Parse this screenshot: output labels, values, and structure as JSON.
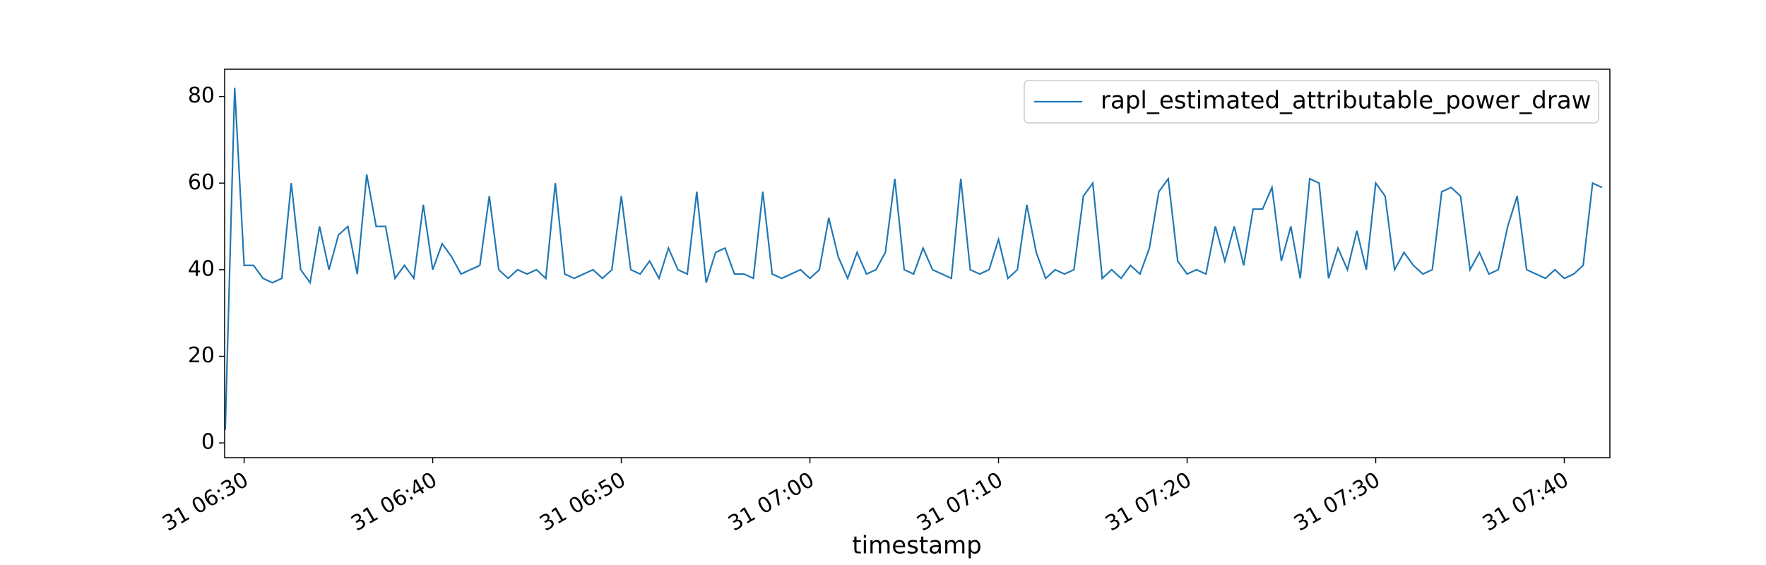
{
  "chart_data": {
    "type": "line",
    "xlabel": "timestamp",
    "x": [
      "31 06:29:00",
      "31 06:29:30",
      "31 06:30:00",
      "31 06:30:30",
      "31 06:31:00",
      "31 06:31:30",
      "31 06:32:00",
      "31 06:32:30",
      "31 06:33:00",
      "31 06:33:30",
      "31 06:34:00",
      "31 06:34:30",
      "31 06:35:00",
      "31 06:35:30",
      "31 06:36:00",
      "31 06:36:30",
      "31 06:37:00",
      "31 06:37:30",
      "31 06:38:00",
      "31 06:38:30",
      "31 06:39:00",
      "31 06:39:30",
      "31 06:40:00",
      "31 06:40:30",
      "31 06:41:00",
      "31 06:41:30",
      "31 06:42:00",
      "31 06:42:30",
      "31 06:43:00",
      "31 06:43:30",
      "31 06:44:00",
      "31 06:44:30",
      "31 06:45:00",
      "31 06:45:30",
      "31 06:46:00",
      "31 06:46:30",
      "31 06:47:00",
      "31 06:47:30",
      "31 06:48:00",
      "31 06:48:30",
      "31 06:49:00",
      "31 06:49:30",
      "31 06:50:00",
      "31 06:50:30",
      "31 06:51:00",
      "31 06:51:30",
      "31 06:52:00",
      "31 06:52:30",
      "31 06:53:00",
      "31 06:53:30",
      "31 06:54:00",
      "31 06:54:30",
      "31 06:55:00",
      "31 06:55:30",
      "31 06:56:00",
      "31 06:56:30",
      "31 06:57:00",
      "31 06:57:30",
      "31 06:58:00",
      "31 06:58:30",
      "31 06:59:00",
      "31 06:59:30",
      "31 07:00:00",
      "31 07:00:30",
      "31 07:01:00",
      "31 07:01:30",
      "31 07:02:00",
      "31 07:02:30",
      "31 07:03:00",
      "31 07:03:30",
      "31 07:04:00",
      "31 07:04:30",
      "31 07:05:00",
      "31 07:05:30",
      "31 07:06:00",
      "31 07:06:30",
      "31 07:07:00",
      "31 07:07:30",
      "31 07:08:00",
      "31 07:08:30",
      "31 07:09:00",
      "31 07:09:30",
      "31 07:10:00",
      "31 07:10:30",
      "31 07:11:00",
      "31 07:11:30",
      "31 07:12:00",
      "31 07:12:30",
      "31 07:13:00",
      "31 07:13:30",
      "31 07:14:00",
      "31 07:14:30",
      "31 07:15:00",
      "31 07:15:30",
      "31 07:16:00",
      "31 07:16:30",
      "31 07:17:00",
      "31 07:17:30",
      "31 07:18:00",
      "31 07:18:30",
      "31 07:19:00",
      "31 07:19:30",
      "31 07:20:00",
      "31 07:20:30",
      "31 07:21:00",
      "31 07:21:30",
      "31 07:22:00",
      "31 07:22:30",
      "31 07:23:00",
      "31 07:23:30",
      "31 07:24:00",
      "31 07:24:30",
      "31 07:25:00",
      "31 07:25:30",
      "31 07:26:00",
      "31 07:26:30",
      "31 07:27:00",
      "31 07:27:30",
      "31 07:28:00",
      "31 07:28:30",
      "31 07:29:00",
      "31 07:29:30",
      "31 07:30:00",
      "31 07:30:30",
      "31 07:31:00",
      "31 07:31:30",
      "31 07:32:00",
      "31 07:32:30",
      "31 07:33:00",
      "31 07:33:30",
      "31 07:34:00",
      "31 07:34:30",
      "31 07:35:00",
      "31 07:35:30",
      "31 07:36:00",
      "31 07:36:30",
      "31 07:37:00",
      "31 07:37:30",
      "31 07:38:00",
      "31 07:38:30",
      "31 07:39:00",
      "31 07:39:30",
      "31 07:40:00",
      "31 07:40:30",
      "31 07:41:00",
      "31 07:41:30",
      "31 07:42:00"
    ],
    "series": [
      {
        "name": "rapl_estimated_attributable_power_draw",
        "color": "#1f77b4",
        "values": [
          3,
          82,
          41,
          41,
          38,
          37,
          38,
          60,
          40,
          37,
          50,
          40,
          48,
          50,
          39,
          62,
          50,
          50,
          38,
          41,
          38,
          55,
          40,
          46,
          43,
          39,
          40,
          41,
          57,
          40,
          38,
          40,
          39,
          40,
          38,
          60,
          39,
          38,
          39,
          40,
          38,
          40,
          57,
          40,
          39,
          42,
          38,
          45,
          40,
          39,
          58,
          37,
          44,
          45,
          39,
          39,
          38,
          58,
          39,
          38,
          39,
          40,
          38,
          40,
          52,
          43,
          38,
          44,
          39,
          40,
          44,
          61,
          40,
          39,
          45,
          40,
          39,
          38,
          61,
          40,
          39,
          40,
          47,
          38,
          40,
          55,
          44,
          38,
          40,
          39,
          40,
          57,
          60,
          38,
          40,
          38,
          41,
          39,
          45,
          58,
          61,
          42,
          39,
          40,
          39,
          50,
          42,
          50,
          41,
          54,
          54,
          59,
          42,
          50,
          38,
          61,
          60,
          38,
          45,
          40,
          49,
          40,
          60,
          57,
          40,
          44,
          41,
          39,
          40,
          58,
          59,
          57,
          40,
          44,
          39,
          40,
          50,
          57,
          40,
          39,
          38,
          40,
          38,
          39,
          41,
          60,
          59
        ]
      }
    ],
    "xlim": [
      "31 06:28:58",
      "31 07:42:25"
    ],
    "xticks": [
      "31 06:30",
      "31 06:40",
      "31 06:50",
      "31 07:00",
      "31 07:10",
      "31 07:20",
      "31 07:30",
      "31 07:40"
    ],
    "ylim": [
      -3.4,
      86.3
    ],
    "yticks": [
      0,
      20,
      40,
      60,
      80
    ],
    "legend": "upper right"
  }
}
